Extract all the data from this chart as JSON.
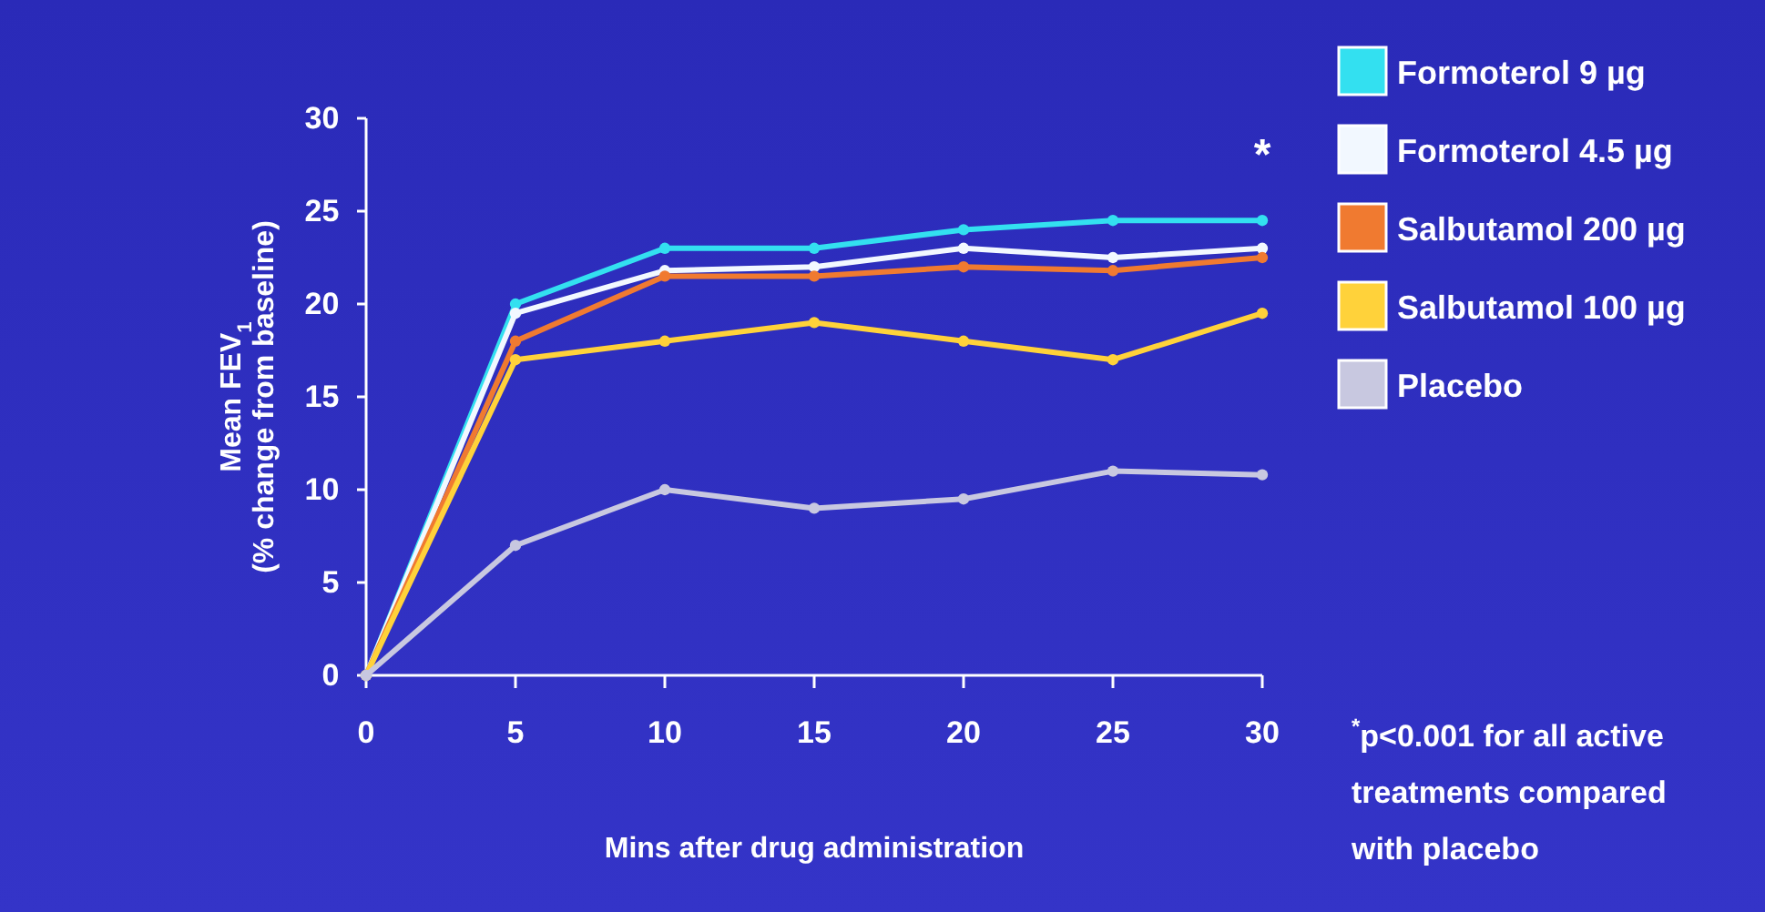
{
  "chart_data": {
    "type": "line",
    "xlabel": "Mins after drug administration",
    "ylabel": "Mean FEV$_{1}$\n(% change from baseline)",
    "x": [
      0,
      5,
      10,
      15,
      20,
      25,
      30
    ],
    "xlim": [
      0,
      30
    ],
    "xticks": [
      0,
      5,
      10,
      15,
      20,
      25,
      30
    ],
    "ylim": [
      0,
      30
    ],
    "yticks": [
      0,
      5,
      10,
      15,
      20,
      25,
      30
    ],
    "grid": false,
    "legend": "right",
    "marker": "circle",
    "line_style": "solid",
    "series": [
      {
        "name": "Formoterol 9 µg",
        "color": "#33e0f0",
        "values": [
          0,
          20,
          23,
          23,
          24,
          24.5,
          24.5
        ]
      },
      {
        "name": "Formoterol 4.5 µg",
        "color": "#f2f8ff",
        "values": [
          0,
          19.5,
          21.8,
          22,
          23,
          22.5,
          23
        ]
      },
      {
        "name": "Salbutamol 200 µg",
        "color": "#f07a30",
        "values": [
          0,
          18,
          21.5,
          21.5,
          22,
          21.8,
          22.5
        ]
      },
      {
        "name": "Salbutamol 100 µg",
        "color": "#ffd23a",
        "values": [
          0,
          17,
          18,
          19,
          18,
          17,
          19.5
        ]
      },
      {
        "name": "Placebo",
        "color": "#c8c8e0",
        "values": [
          0,
          7,
          10,
          9,
          9.5,
          11,
          10.8
        ]
      }
    ],
    "annotations": [
      "*",
      "$^{*}$p<0.001 for all active treatments compared with placebo"
    ]
  }
}
